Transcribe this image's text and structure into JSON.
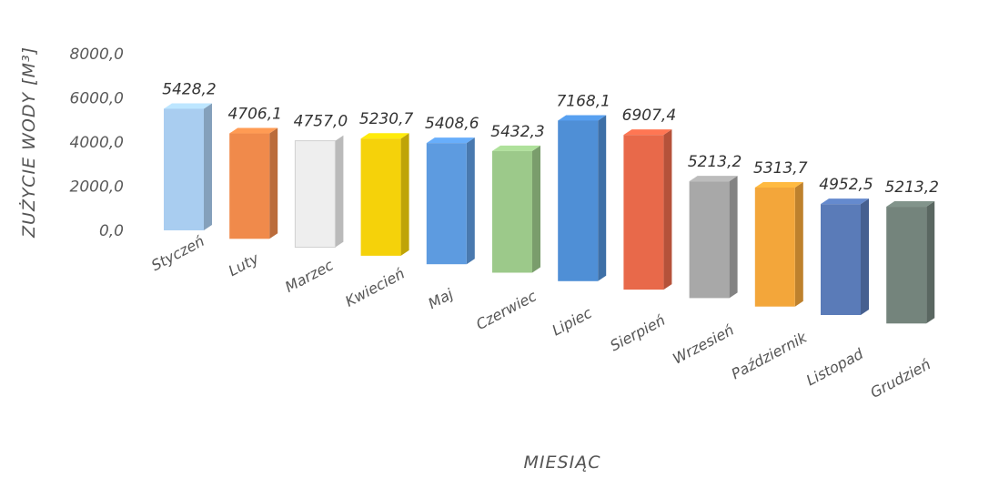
{
  "chart_data": {
    "type": "bar",
    "title": "",
    "xlabel": "MIESIĄC",
    "ylabel": "ZUŻYCIE WODY [M³]",
    "ylim": [
      0,
      8000
    ],
    "y_ticks": [
      "0,0",
      "2000,0",
      "4000,0",
      "6000,0",
      "8000,0"
    ],
    "grid": false,
    "legend": "none",
    "categories": [
      "Styczeń",
      "Luty",
      "Marzec",
      "Kwiecień",
      "Maj",
      "Czerwiec",
      "Lipiec",
      "Sierpień",
      "Wrzesień",
      "Październik",
      "Listopad",
      "Grudzień"
    ],
    "values": [
      5428.2,
      4706.1,
      4757.0,
      5230.7,
      5408.6,
      5432.3,
      7168.1,
      6907.4,
      5213.2,
      5313.7,
      4952.5,
      5213.2
    ],
    "value_labels": [
      "5428,2",
      "4706,1",
      "4757,0",
      "5230,7",
      "5408,6",
      "5432,3",
      "7168,1",
      "6907,4",
      "5213,2",
      "5313,7",
      "4952,5",
      "5213,2"
    ],
    "colors": [
      "#a9cdf0",
      "#f08a4b",
      "#eeeeee",
      "#f5d20a",
      "#5d9be0",
      "#9cc98a",
      "#4f8fd6",
      "#e8694a",
      "#a8a8a8",
      "#f3a63a",
      "#5a7bb8",
      "#74847c"
    ]
  }
}
